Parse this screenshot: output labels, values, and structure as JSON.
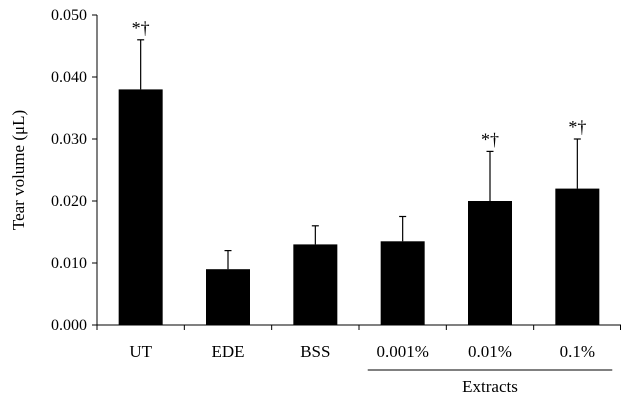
{
  "chart_data": {
    "type": "bar",
    "title": "",
    "xlabel": "",
    "ylabel": "Tear volume (μL)",
    "ylim": [
      0,
      0.05
    ],
    "yticks": [
      "0.000",
      "0.010",
      "0.020",
      "0.030",
      "0.040",
      "0.050"
    ],
    "ytick_values": [
      0,
      0.01,
      0.02,
      0.03,
      0.04,
      0.05
    ],
    "categories": [
      "UT",
      "EDE",
      "BSS",
      "0.001%",
      "0.01%",
      "0.1%"
    ],
    "values": [
      0.038,
      0.009,
      0.013,
      0.0135,
      0.02,
      0.022
    ],
    "error_upper": [
      0.008,
      0.003,
      0.003,
      0.004,
      0.008,
      0.008
    ],
    "annotations": [
      "*†",
      "",
      "",
      "",
      "*†",
      "*†"
    ],
    "group_label": {
      "text": "Extracts",
      "categories": [
        "0.001%",
        "0.01%",
        "0.1%"
      ]
    },
    "bar_color": "#000000",
    "grid": false,
    "legend": "none"
  }
}
